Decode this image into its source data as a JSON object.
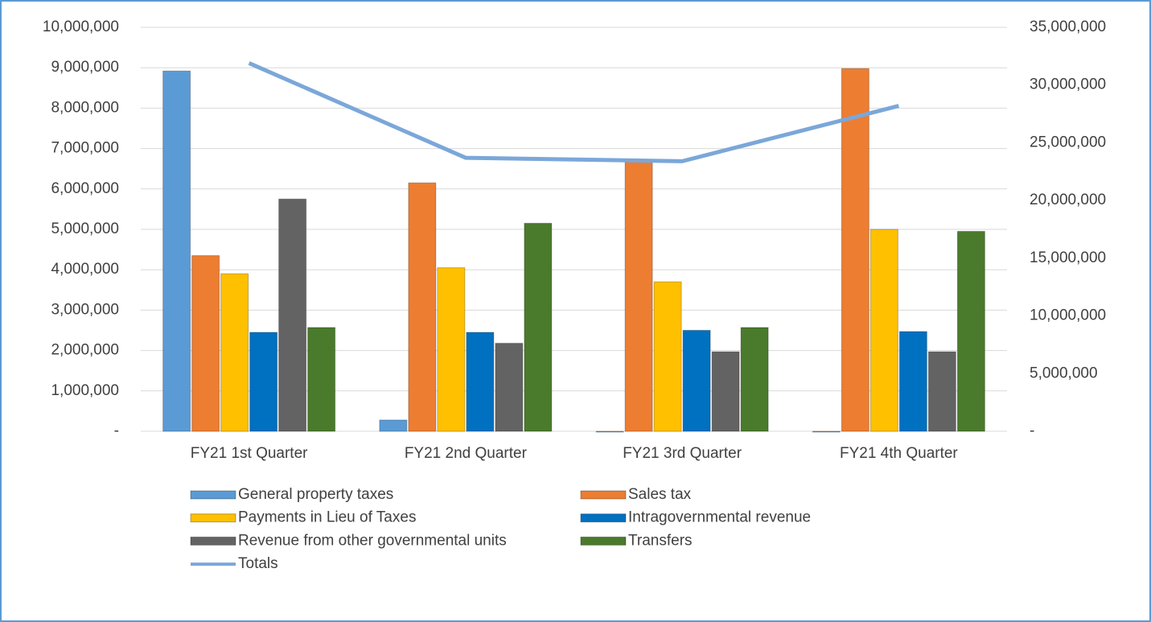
{
  "chart_data": {
    "type": "bar",
    "categories": [
      "FY21 1st Quarter",
      "FY21 2nd Quarter",
      "FY21 3rd Quarter",
      "FY21 4th Quarter"
    ],
    "series": [
      {
        "name": "General property taxes",
        "color": "#5b9bd5",
        "values": [
          8920000,
          280000,
          0,
          -20000
        ]
      },
      {
        "name": "Sales tax",
        "color": "#ed7d31",
        "values": [
          4350000,
          6150000,
          6730000,
          8980000
        ]
      },
      {
        "name": "Payments in Lieu of Taxes",
        "color": "#ffc000",
        "values": [
          3900000,
          4050000,
          3700000,
          5000000
        ]
      },
      {
        "name": "Intragovernmental revenue",
        "color": "#0070c0",
        "values": [
          2450000,
          2450000,
          2500000,
          2470000
        ]
      },
      {
        "name": "Revenue from other governmental units",
        "color": "#636363",
        "values": [
          5750000,
          2180000,
          1970000,
          1970000
        ]
      },
      {
        "name": "Transfers",
        "color": "#4a7a2c",
        "values": [
          2570000,
          5150000,
          2570000,
          4950000
        ]
      },
      {
        "name": "Totals",
        "color": "#7ba7d9",
        "type": "line",
        "axis": "y2",
        "values": [
          31900000,
          23700000,
          23400000,
          28200000
        ]
      }
    ],
    "ylim": [
      0,
      10000000
    ],
    "yticks": [
      {
        "value": 0,
        "label": "-"
      },
      {
        "value": 1000000,
        "label": "1,000,000"
      },
      {
        "value": 2000000,
        "label": "2,000,000"
      },
      {
        "value": 3000000,
        "label": "3,000,000"
      },
      {
        "value": 4000000,
        "label": "4,000,000"
      },
      {
        "value": 5000000,
        "label": "5,000,000"
      },
      {
        "value": 6000000,
        "label": "6,000,000"
      },
      {
        "value": 7000000,
        "label": "7,000,000"
      },
      {
        "value": 8000000,
        "label": "8,000,000"
      },
      {
        "value": 9000000,
        "label": "9,000,000"
      },
      {
        "value": 10000000,
        "label": "10,000,000"
      }
    ],
    "y2lim": [
      0,
      35000000
    ],
    "y2ticks": [
      {
        "value": 0,
        "label": "-"
      },
      {
        "value": 5000000,
        "label": "5,000,000"
      },
      {
        "value": 10000000,
        "label": "10,000,000"
      },
      {
        "value": 15000000,
        "label": "15,000,000"
      },
      {
        "value": 20000000,
        "label": "20,000,000"
      },
      {
        "value": 25000000,
        "label": "25,000,000"
      },
      {
        "value": 30000000,
        "label": "30,000,000"
      },
      {
        "value": 35000000,
        "label": "35,000,000"
      }
    ],
    "grid": true,
    "legend": "bottom"
  }
}
